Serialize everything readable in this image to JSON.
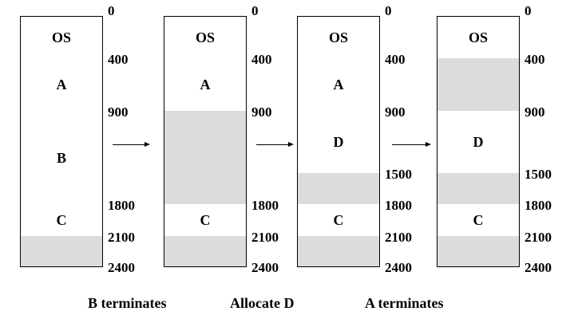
{
  "columns": [
    {
      "blocks": [
        {
          "label": "OS",
          "start": 0,
          "end": 400,
          "free": false
        },
        {
          "label": "A",
          "start": 400,
          "end": 900,
          "free": false
        },
        {
          "label": "B",
          "start": 900,
          "end": 1800,
          "free": false
        },
        {
          "label": "C",
          "start": 1800,
          "end": 2100,
          "free": false
        },
        {
          "label": "",
          "start": 2100,
          "end": 2400,
          "free": true
        }
      ],
      "addresses": [
        "0",
        "400",
        "900",
        "1800",
        "2100",
        "2400"
      ]
    },
    {
      "blocks": [
        {
          "label": "OS",
          "start": 0,
          "end": 400,
          "free": false
        },
        {
          "label": "A",
          "start": 400,
          "end": 900,
          "free": false
        },
        {
          "label": "",
          "start": 900,
          "end": 1800,
          "free": true
        },
        {
          "label": "C",
          "start": 1800,
          "end": 2100,
          "free": false
        },
        {
          "label": "",
          "start": 2100,
          "end": 2400,
          "free": true
        }
      ],
      "addresses": [
        "0",
        "400",
        "900",
        "1800",
        "2100",
        "2400"
      ]
    },
    {
      "blocks": [
        {
          "label": "OS",
          "start": 0,
          "end": 400,
          "free": false
        },
        {
          "label": "A",
          "start": 400,
          "end": 900,
          "free": false
        },
        {
          "label": "D",
          "start": 900,
          "end": 1500,
          "free": false
        },
        {
          "label": "",
          "start": 1500,
          "end": 1800,
          "free": true
        },
        {
          "label": "C",
          "start": 1800,
          "end": 2100,
          "free": false
        },
        {
          "label": "",
          "start": 2100,
          "end": 2400,
          "free": true
        }
      ],
      "addresses": [
        "0",
        "400",
        "900",
        "1500",
        "1800",
        "2100",
        "2400"
      ]
    },
    {
      "blocks": [
        {
          "label": "OS",
          "start": 0,
          "end": 400,
          "free": false
        },
        {
          "label": "",
          "start": 400,
          "end": 900,
          "free": true
        },
        {
          "label": "D",
          "start": 900,
          "end": 1500,
          "free": false
        },
        {
          "label": "",
          "start": 1500,
          "end": 1800,
          "free": true
        },
        {
          "label": "C",
          "start": 1800,
          "end": 2100,
          "free": false
        },
        {
          "label": "",
          "start": 2100,
          "end": 2400,
          "free": true
        }
      ],
      "addresses": [
        "0",
        "400",
        "900",
        "1500",
        "1800",
        "2100",
        "2400"
      ]
    }
  ],
  "steps": [
    "B terminates",
    "Allocate D",
    "A terminates"
  ],
  "colors": {
    "free": "#dcdcdc",
    "used": "#ffffff",
    "line": "#000000"
  }
}
